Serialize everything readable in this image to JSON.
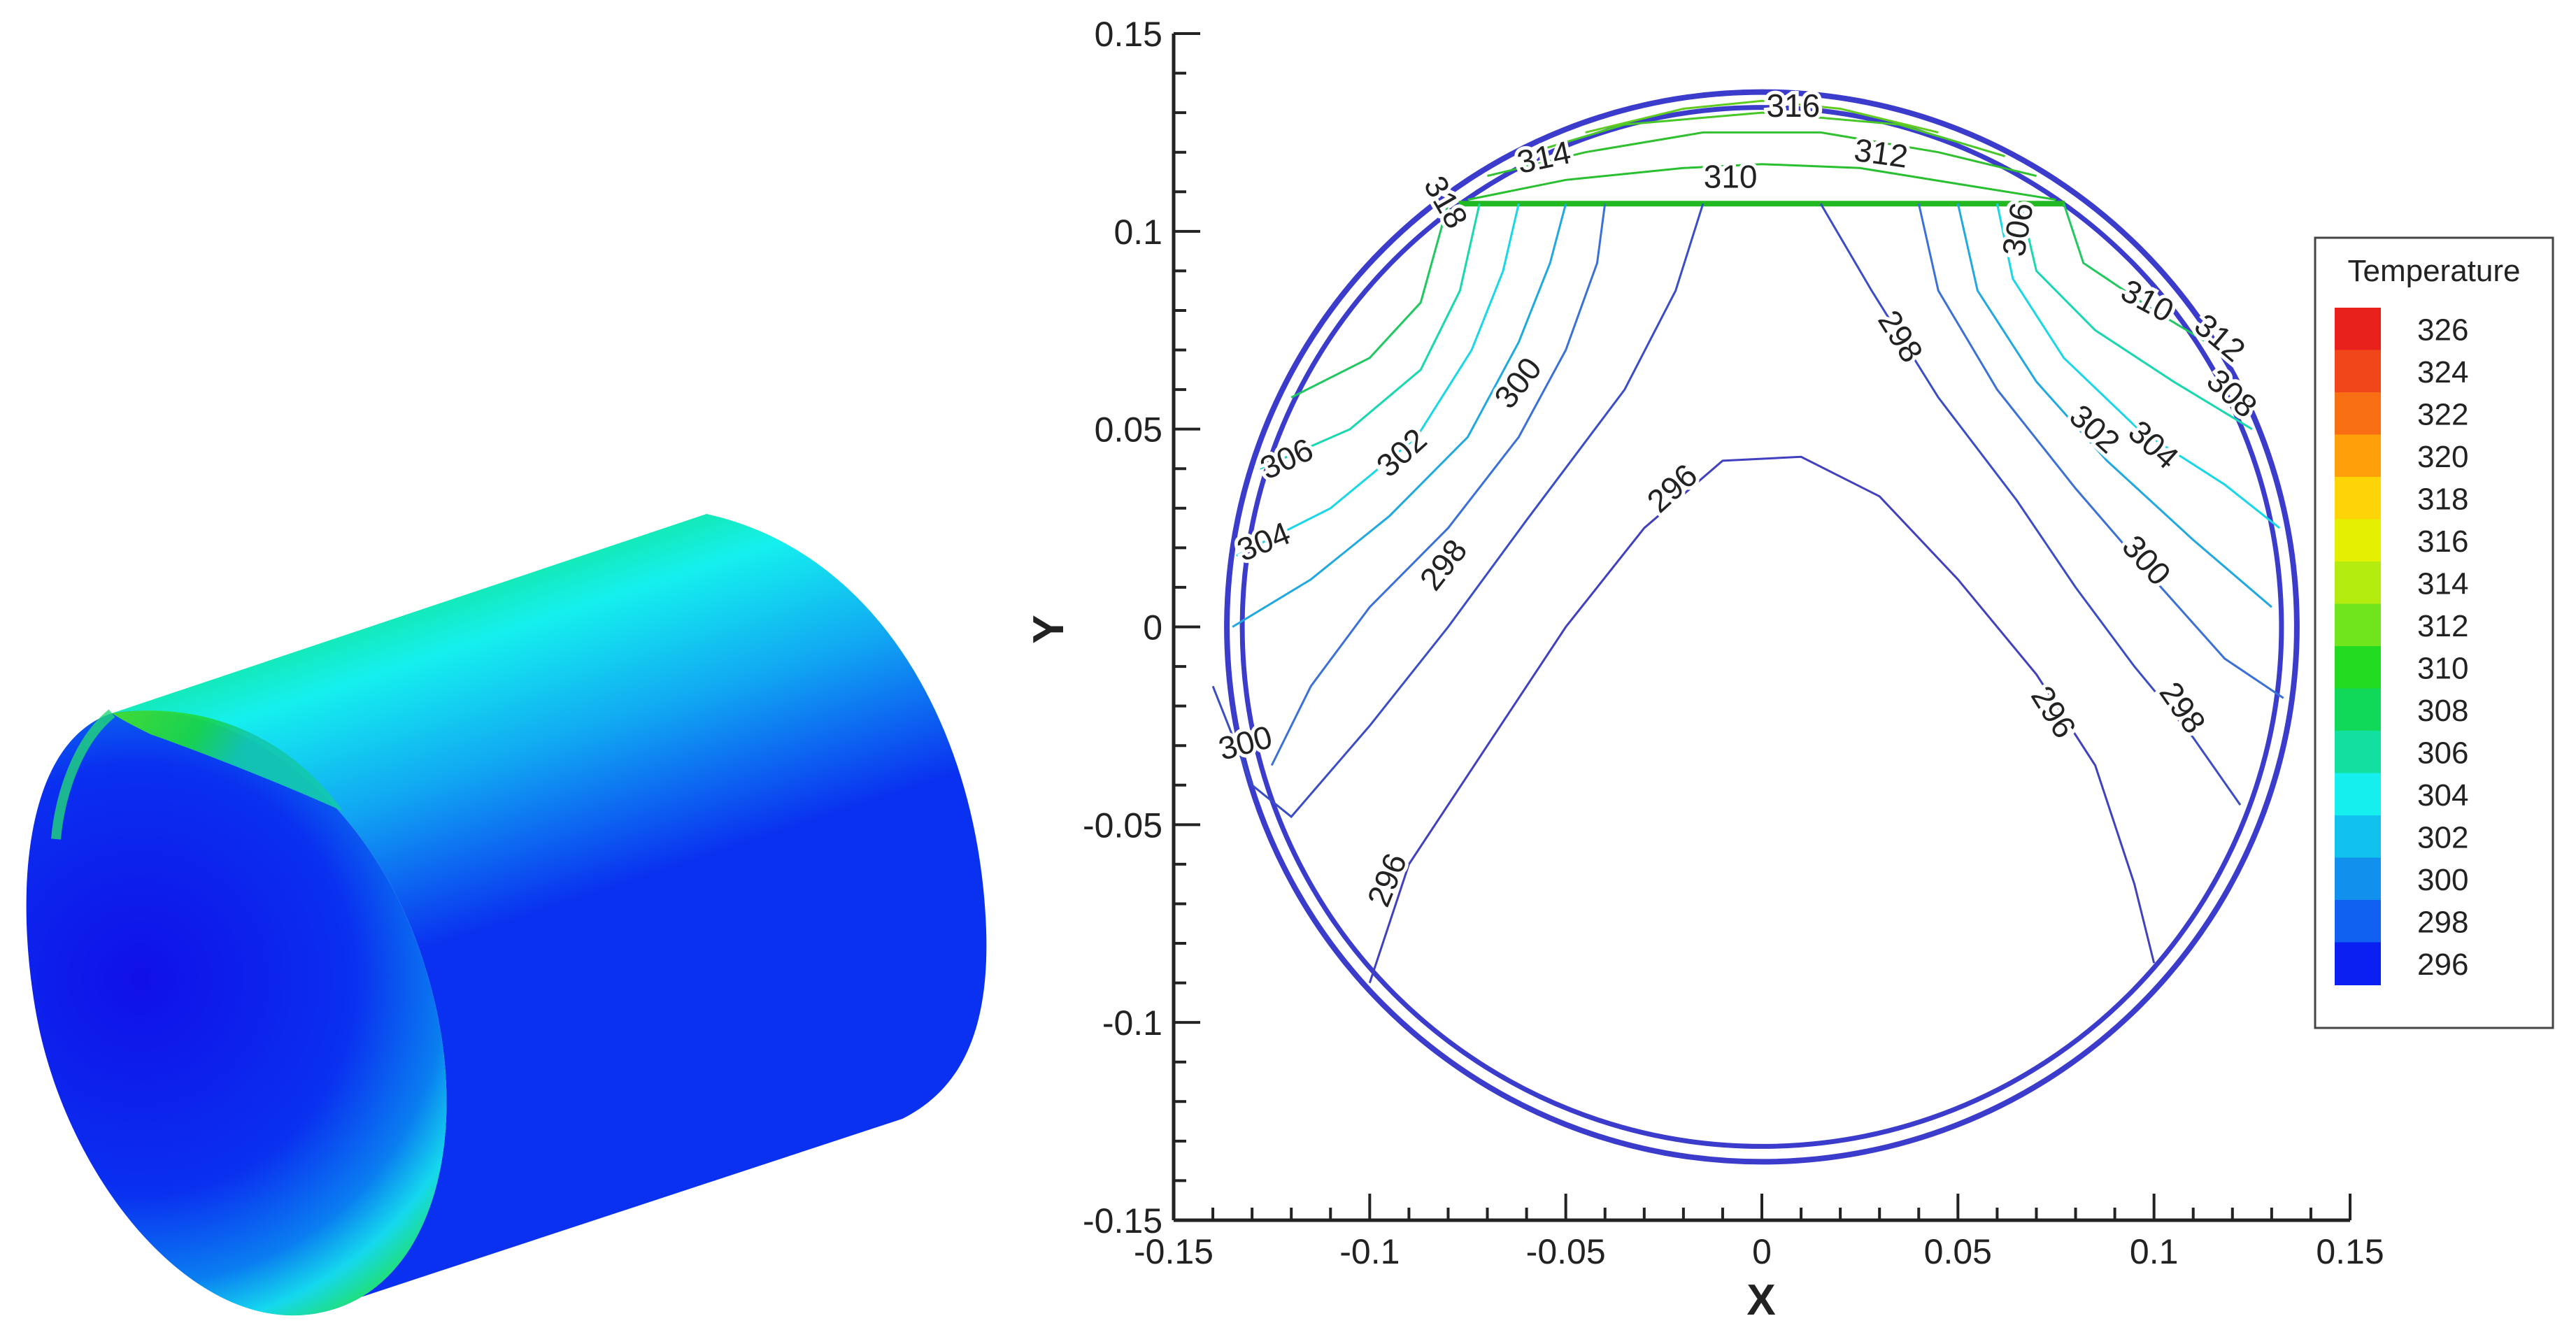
{
  "render3d": {
    "colors": {
      "red": "#e8211c",
      "orange": "#ff8a00",
      "yellow": "#f4f000",
      "green": "#16e01a",
      "cyan": "#15f0ee",
      "blue": "#0a1af2",
      "darkblue": "#1a10c8"
    }
  },
  "chart_data": {
    "type": "contour",
    "xlabel": "X",
    "ylabel": "Y",
    "xlim": [
      -0.15,
      0.15
    ],
    "ylim": [
      -0.15,
      0.15
    ],
    "x_ticks": [
      -0.15,
      -0.1,
      -0.05,
      0,
      0.05,
      0.1,
      0.15
    ],
    "x_tick_labels": [
      "-0.15",
      "-0.1",
      "-0.05",
      "0",
      "0.05",
      "0.1",
      "0.15"
    ],
    "y_ticks": [
      -0.15,
      -0.1,
      -0.05,
      0,
      0.05,
      0.1,
      0.15
    ],
    "y_tick_labels": [
      "-0.15",
      "-0.1",
      "-0.05",
      "0",
      "0.05",
      "0.1",
      "0.15"
    ],
    "outer_radius": 0.135,
    "liquid_level_y": 0.107,
    "legend": {
      "title": "Temperature",
      "placement": "right",
      "levels": [
        "326",
        "324",
        "322",
        "320",
        "318",
        "316",
        "314",
        "312",
        "310",
        "308",
        "306",
        "304",
        "302",
        "300",
        "298",
        "296"
      ],
      "colors": [
        "#e8211c",
        "#f0461a",
        "#f86e12",
        "#ffa00a",
        "#fcd408",
        "#e4f000",
        "#b4ec10",
        "#70e41c",
        "#22dc22",
        "#10d858",
        "#12e0a0",
        "#15f0ee",
        "#12c2ee",
        "#1290ee",
        "#1060f2",
        "#0a20f2"
      ]
    },
    "contours": [
      {
        "level": "296",
        "color": "#4040c0",
        "points": [
          [
            -0.1,
            -0.09
          ],
          [
            -0.09,
            -0.06
          ],
          [
            -0.07,
            -0.03
          ],
          [
            -0.05,
            0.0
          ],
          [
            -0.03,
            0.025
          ],
          [
            -0.01,
            0.042
          ],
          [
            0.01,
            0.043
          ],
          [
            0.03,
            0.033
          ],
          [
            0.05,
            0.012
          ],
          [
            0.07,
            -0.012
          ],
          [
            0.085,
            -0.035
          ],
          [
            0.095,
            -0.065
          ],
          [
            0.1,
            -0.085
          ]
        ]
      },
      {
        "level": "298",
        "color": "#3a4cc8",
        "points": [
          [
            -0.14,
            -0.015
          ],
          [
            -0.13,
            -0.04
          ],
          [
            -0.12,
            -0.048
          ],
          [
            -0.1,
            -0.025
          ],
          [
            -0.08,
            0.0
          ],
          [
            -0.06,
            0.027
          ],
          [
            -0.035,
            0.06
          ],
          [
            -0.022,
            0.085
          ],
          [
            -0.015,
            0.107
          ]
        ],
        "points2": [
          [
            0.015,
            0.107
          ],
          [
            0.028,
            0.085
          ],
          [
            0.045,
            0.058
          ],
          [
            0.065,
            0.032
          ],
          [
            0.08,
            0.01
          ],
          [
            0.095,
            -0.01
          ],
          [
            0.11,
            -0.028
          ],
          [
            0.122,
            -0.045
          ]
        ]
      },
      {
        "level": "300",
        "color": "#3a70d8",
        "points": [
          [
            -0.125,
            -0.035
          ],
          [
            -0.115,
            -0.015
          ],
          [
            -0.1,
            0.005
          ],
          [
            -0.08,
            0.025
          ],
          [
            -0.062,
            0.048
          ],
          [
            -0.05,
            0.07
          ],
          [
            -0.042,
            0.092
          ],
          [
            -0.04,
            0.107
          ]
        ],
        "points2": [
          [
            0.04,
            0.107
          ],
          [
            0.045,
            0.085
          ],
          [
            0.06,
            0.06
          ],
          [
            0.08,
            0.035
          ],
          [
            0.1,
            0.012
          ],
          [
            0.118,
            -0.008
          ],
          [
            0.133,
            -0.018
          ]
        ]
      },
      {
        "level": "302",
        "color": "#20a8e0",
        "points": [
          [
            -0.135,
            0.0
          ],
          [
            -0.115,
            0.012
          ],
          [
            -0.095,
            0.028
          ],
          [
            -0.075,
            0.048
          ],
          [
            -0.062,
            0.072
          ],
          [
            -0.054,
            0.092
          ],
          [
            -0.05,
            0.107
          ]
        ],
        "points2": [
          [
            0.05,
            0.107
          ],
          [
            0.055,
            0.085
          ],
          [
            0.07,
            0.062
          ],
          [
            0.088,
            0.042
          ],
          [
            0.11,
            0.022
          ],
          [
            0.13,
            0.005
          ]
        ]
      },
      {
        "level": "304",
        "color": "#18d8e8",
        "points": [
          [
            -0.134,
            0.018
          ],
          [
            -0.11,
            0.03
          ],
          [
            -0.088,
            0.048
          ],
          [
            -0.074,
            0.07
          ],
          [
            -0.066,
            0.09
          ],
          [
            -0.062,
            0.107
          ]
        ],
        "points2": [
          [
            0.06,
            0.107
          ],
          [
            0.064,
            0.088
          ],
          [
            0.077,
            0.068
          ],
          [
            0.096,
            0.05
          ],
          [
            0.118,
            0.036
          ],
          [
            0.132,
            0.025
          ]
        ]
      },
      {
        "level": "306",
        "color": "#18d8b0",
        "points": [
          [
            -0.128,
            0.04
          ],
          [
            -0.105,
            0.05
          ],
          [
            -0.087,
            0.065
          ],
          [
            -0.077,
            0.085
          ],
          [
            -0.072,
            0.107
          ]
        ],
        "points2": [
          [
            0.066,
            0.107
          ],
          [
            0.07,
            0.09
          ],
          [
            0.085,
            0.075
          ],
          [
            0.105,
            0.062
          ],
          [
            0.125,
            0.05
          ]
        ]
      },
      {
        "level": "308",
        "color": "#20c860",
        "points": [
          [
            -0.12,
            0.058
          ],
          [
            -0.1,
            0.068
          ],
          [
            -0.087,
            0.082
          ],
          [
            -0.08,
            0.107
          ]
        ],
        "points2": [
          [
            0.077,
            0.107
          ],
          [
            0.082,
            0.092
          ],
          [
            0.1,
            0.08
          ],
          [
            0.12,
            0.068
          ]
        ]
      },
      {
        "level": "310",
        "color": "#28c030",
        "points": [
          [
            -0.075,
            0.108
          ],
          [
            -0.05,
            0.113
          ],
          [
            -0.02,
            0.116
          ],
          [
            0.0,
            0.117
          ],
          [
            0.025,
            0.116
          ],
          [
            0.05,
            0.112
          ],
          [
            0.075,
            0.108
          ]
        ]
      },
      {
        "level": "312",
        "color": "#30c030",
        "points": [
          [
            -0.07,
            0.114
          ],
          [
            -0.045,
            0.12
          ],
          [
            -0.015,
            0.125
          ],
          [
            0.015,
            0.125
          ],
          [
            0.045,
            0.12
          ],
          [
            0.07,
            0.114
          ]
        ]
      },
      {
        "level": "314",
        "color": "#48c828",
        "points": [
          [
            -0.062,
            0.119
          ],
          [
            -0.035,
            0.127
          ],
          [
            0.0,
            0.13
          ],
          [
            0.035,
            0.127
          ],
          [
            0.062,
            0.119
          ]
        ]
      },
      {
        "level": "316",
        "color": "#60cc20",
        "points": [
          [
            -0.045,
            0.125
          ],
          [
            -0.02,
            0.131
          ],
          [
            0.0,
            0.133
          ],
          [
            0.02,
            0.131
          ],
          [
            0.045,
            0.125
          ]
        ]
      }
    ],
    "contour_labels": [
      {
        "text": "316",
        "x": 0.008,
        "y": 0.129,
        "angle": 0
      },
      {
        "text": "314",
        "x": -0.055,
        "y": 0.116,
        "angle": -12
      },
      {
        "text": "312",
        "x": 0.03,
        "y": 0.117,
        "angle": 8
      },
      {
        "text": "310",
        "x": -0.008,
        "y": 0.111,
        "angle": 0
      },
      {
        "text": "318",
        "x": -0.083,
        "y": 0.106,
        "angle": 60
      },
      {
        "text": "306",
        "x": 0.068,
        "y": 0.1,
        "angle": -80
      },
      {
        "text": "310",
        "x": 0.097,
        "y": 0.08,
        "angle": 28
      },
      {
        "text": "312",
        "x": 0.115,
        "y": 0.071,
        "angle": 40
      },
      {
        "text": "308",
        "x": 0.118,
        "y": 0.057,
        "angle": 42
      },
      {
        "text": "298",
        "x": 0.033,
        "y": 0.072,
        "angle": 58
      },
      {
        "text": "302",
        "x": 0.083,
        "y": 0.048,
        "angle": 42
      },
      {
        "text": "304",
        "x": 0.098,
        "y": 0.044,
        "angle": 42
      },
      {
        "text": "300",
        "x": 0.096,
        "y": 0.015,
        "angle": 48
      },
      {
        "text": "298",
        "x": 0.105,
        "y": -0.022,
        "angle": 55
      },
      {
        "text": "296",
        "x": 0.072,
        "y": -0.023,
        "angle": 58
      },
      {
        "text": "300",
        "x": -0.06,
        "y": 0.06,
        "angle": -52
      },
      {
        "text": "302",
        "x": -0.09,
        "y": 0.042,
        "angle": -42
      },
      {
        "text": "306",
        "x": -0.12,
        "y": 0.04,
        "angle": -25
      },
      {
        "text": "304",
        "x": -0.126,
        "y": 0.019,
        "angle": -22
      },
      {
        "text": "298",
        "x": -0.079,
        "y": 0.014,
        "angle": -52
      },
      {
        "text": "296",
        "x": -0.021,
        "y": 0.033,
        "angle": -42
      },
      {
        "text": "300",
        "x": -0.131,
        "y": -0.032,
        "angle": -15
      },
      {
        "text": "296",
        "x": -0.093,
        "y": -0.065,
        "angle": -68
      }
    ]
  }
}
